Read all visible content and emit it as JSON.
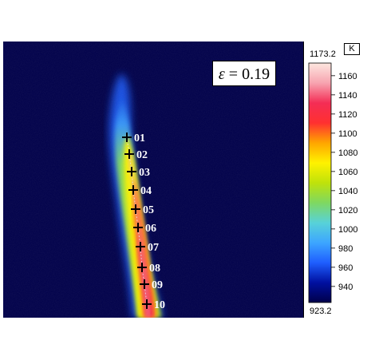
{
  "emissivity": {
    "symbol": "ε",
    "text": " = 0.19"
  },
  "colorbar": {
    "unit": "K",
    "max_label": "1173.2",
    "min_label": "923.2",
    "min": 923.2,
    "max": 1173.2,
    "ticks": [
      "940",
      "960",
      "980",
      "1000",
      "1020",
      "1040",
      "1060",
      "1080",
      "1100",
      "1120",
      "1140",
      "1160"
    ],
    "tick_values": [
      940,
      960,
      980,
      1000,
      1020,
      1040,
      1060,
      1080,
      1100,
      1120,
      1140,
      1160
    ],
    "colors": [
      "#00004a",
      "#0010a0",
      "#1f5fff",
      "#3da6ff",
      "#58d2d8",
      "#7fd860",
      "#bfe20a",
      "#fff200",
      "#ffa500",
      "#ff3030",
      "#f42d55",
      "#f7a4b0",
      "#fde7e0"
    ]
  },
  "markers": [
    "01",
    "02",
    "03",
    "04",
    "05",
    "06",
    "07",
    "08",
    "09",
    "10"
  ],
  "colors": {
    "background": "#00004a"
  }
}
